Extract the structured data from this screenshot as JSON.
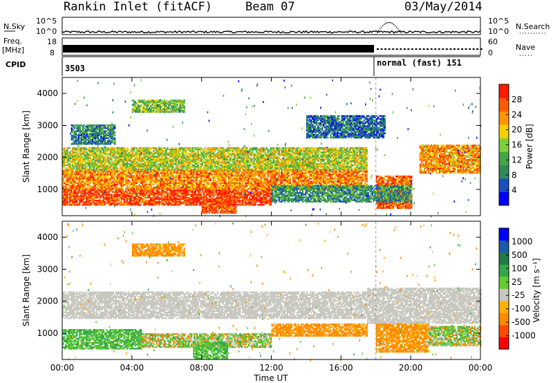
{
  "header": {
    "station": "Rankin Inlet (fitACF)",
    "beam": "Beam 07",
    "date": "03/May/2014"
  },
  "noise_panel": {
    "left_label": "N.Sky",
    "right_label": "N.Search",
    "left_ticks": [
      "10^5",
      "10^0"
    ],
    "right_ticks": [
      "10^5",
      "10^0"
    ],
    "sky_level_rel": 0.15,
    "search_bump": {
      "x_range": [
        "18:00",
        "19:30"
      ],
      "level_rel": 0.7
    }
  },
  "freq_panel": {
    "left_label_top": "Freq.",
    "left_label_unit": "[MHz]",
    "right_label": "Nave",
    "left_ticks": [
      "18",
      "8"
    ],
    "right_ticks": [
      "60",
      "0"
    ]
  },
  "cpid": {
    "label": "CPID",
    "segments": [
      {
        "start": "00:00",
        "end": "18:00",
        "text": "3503"
      },
      {
        "start": "18:00",
        "end": "24:00",
        "text": "normal (fast) 151"
      }
    ]
  },
  "x_axis": {
    "label": "Time UT",
    "ticks": [
      "00:00",
      "04:00",
      "08:00",
      "12:00",
      "16:00",
      "20:00",
      "00:00"
    ],
    "tick_hours": [
      0,
      4,
      8,
      12,
      16,
      20,
      24
    ]
  },
  "chart_data": [
    {
      "type": "heatmap",
      "name": "power",
      "ylabel": "Slant Range [km]",
      "ylim": [
        180,
        4500
      ],
      "yticks": [
        1000,
        2000,
        3000,
        4000
      ],
      "xlim_hours": [
        0,
        24
      ],
      "colorbar": {
        "label": "Power [dB]",
        "ticks": [
          4,
          8,
          12,
          16,
          20,
          24,
          28
        ],
        "range": [
          0,
          32
        ],
        "stops": [
          "#0000ff",
          "#1a4fbf",
          "#2f8a5a",
          "#44a647",
          "#7fcf3a",
          "#f5d000",
          "#ff9400",
          "#ff5a00",
          "#ff1a00"
        ]
      },
      "regions": [
        {
          "t": [
            0.0,
            12.0
          ],
          "r": [
            500,
            1000
          ],
          "level": 0.92
        },
        {
          "t": [
            0.0,
            17.5
          ],
          "r": [
            1000,
            1600
          ],
          "level": 0.78
        },
        {
          "t": [
            0.0,
            17.5
          ],
          "r": [
            1600,
            2300
          ],
          "level": 0.55
        },
        {
          "t": [
            8.0,
            10.0
          ],
          "r": [
            250,
            700
          ],
          "level": 0.9
        },
        {
          "t": [
            18.0,
            20.0
          ],
          "r": [
            400,
            1400
          ],
          "level": 0.88
        },
        {
          "t": [
            20.5,
            24.0
          ],
          "r": [
            1500,
            2400
          ],
          "level": 0.75
        },
        {
          "t": [
            0.5,
            3.0
          ],
          "r": [
            2400,
            3000
          ],
          "level": 0.25
        },
        {
          "t": [
            4.0,
            7.0
          ],
          "r": [
            3400,
            3800
          ],
          "level": 0.45
        },
        {
          "t": [
            14.0,
            18.5
          ],
          "r": [
            2600,
            3300
          ],
          "level": 0.2
        },
        {
          "t": [
            12.0,
            20.0
          ],
          "r": [
            600,
            1100
          ],
          "level": 0.3
        }
      ],
      "marker_hour": 18.0
    },
    {
      "type": "heatmap",
      "name": "velocity",
      "ylabel": "Slant Range [km]",
      "ylim": [
        180,
        4500
      ],
      "yticks": [
        1000,
        2000,
        3000,
        4000
      ],
      "xlim_hours": [
        0,
        24
      ],
      "colorbar": {
        "label": "Velocity [m s⁻¹]",
        "ticks": [
          "1000",
          "500",
          "100",
          "25",
          "-25",
          "-100",
          "-500",
          "-1000"
        ],
        "stops": [
          "#ff0000",
          "#ff4a00",
          "#ff8a00",
          "#ffb000",
          "#c8c8c0",
          "#66cc33",
          "#33a84a",
          "#227a4a",
          "#1a5aa8",
          "#0000ff"
        ]
      },
      "regions": [
        {
          "t": [
            0.0,
            17.5
          ],
          "r": [
            1450,
            2300
          ],
          "kind": "gs"
        },
        {
          "t": [
            17.5,
            24.0
          ],
          "r": [
            1300,
            2400
          ],
          "kind": "gs"
        },
        {
          "t": [
            0.0,
            4.5
          ],
          "r": [
            500,
            1100
          ],
          "kind": "green"
        },
        {
          "t": [
            4.5,
            12.0
          ],
          "r": [
            550,
            1000
          ],
          "kind": "mixed"
        },
        {
          "t": [
            7.5,
            9.5
          ],
          "r": [
            200,
            700
          ],
          "kind": "green"
        },
        {
          "t": [
            12.0,
            17.5
          ],
          "r": [
            900,
            1300
          ],
          "kind": "orange"
        },
        {
          "t": [
            18.0,
            21.0
          ],
          "r": [
            400,
            1300
          ],
          "kind": "orange"
        },
        {
          "t": [
            21.0,
            24.0
          ],
          "r": [
            600,
            1200
          ],
          "kind": "mixed"
        },
        {
          "t": [
            4.0,
            7.0
          ],
          "r": [
            3400,
            3800
          ],
          "kind": "orange"
        }
      ],
      "marker_hour": 18.0
    }
  ]
}
